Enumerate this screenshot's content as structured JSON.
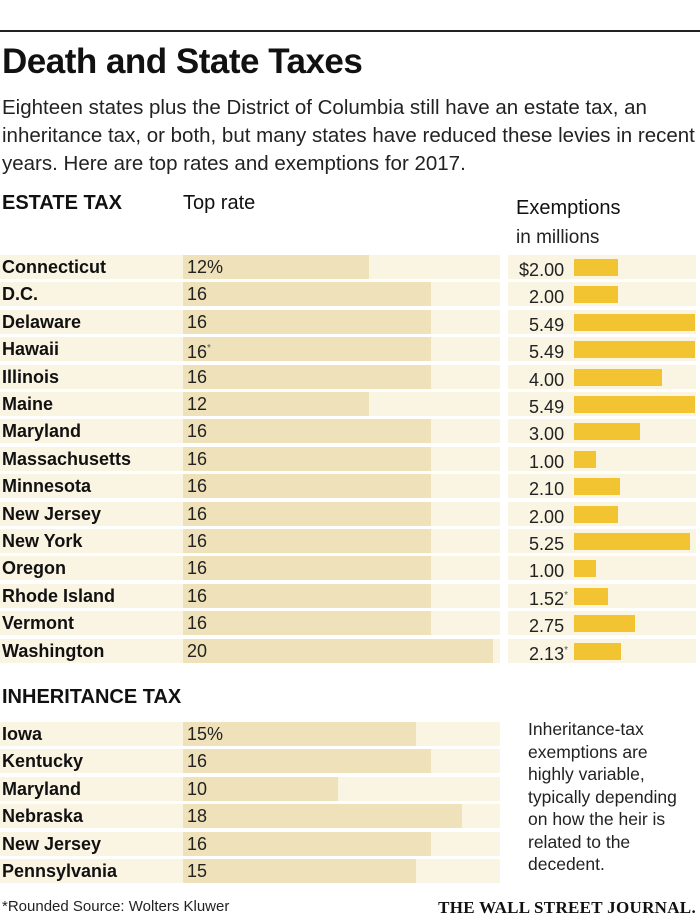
{
  "title": "Death and State Taxes",
  "subtitle": "Eighteen states plus the District of Columbia still have an estate tax, an inheritance tax, or both, but many states have reduced these levies in recent years. Here are top rates and exemptions for 2017.",
  "estate": {
    "heading": "ESTATE TAX",
    "rate_heading": "Top rate",
    "exemption_heading": "Exemptions",
    "exemption_subheading": "in millions"
  },
  "inheritance": {
    "heading": "INHERITANCE TAX",
    "exemption_note": "Inheritance-tax exemptions are highly variable, typically depending on how the heir is related to the decedent."
  },
  "footer": {
    "note": "*Rounded   Source: Wolters Kluwer",
    "brand": "THE WALL STREET JOURNAL."
  },
  "colors": {
    "row_background": "#faf4e2",
    "rate_bar": "#efe1b9",
    "exemption_bar": "#f3c431"
  },
  "chart_data": [
    {
      "type": "bar",
      "title": "ESTATE TAX",
      "xlabel": "Top rate",
      "unit": "%",
      "xlim": [
        0,
        20
      ],
      "categories": [
        "Connecticut",
        "D.C.",
        "Delaware",
        "Hawaii",
        "Illinois",
        "Maine",
        "Maryland",
        "Massachusetts",
        "Minnesota",
        "New Jersey",
        "New York",
        "Oregon",
        "Rhode Island",
        "Vermont",
        "Washington"
      ],
      "values": [
        12,
        16,
        16,
        16,
        16,
        12,
        16,
        16,
        16,
        16,
        16,
        16,
        16,
        16,
        20
      ],
      "labels": [
        "12%",
        "16",
        "16",
        "16",
        "16",
        "12",
        "16",
        "16",
        "16",
        "16",
        "16",
        "16",
        "16",
        "16",
        "20"
      ],
      "rounded": [
        false,
        false,
        false,
        true,
        false,
        false,
        false,
        false,
        false,
        false,
        false,
        false,
        false,
        false,
        false
      ]
    },
    {
      "type": "bar",
      "title": "Exemptions",
      "ylabel": "in millions",
      "unit": "$ millions",
      "xlim": [
        0,
        5.49
      ],
      "categories": [
        "Connecticut",
        "D.C.",
        "Delaware",
        "Hawaii",
        "Illinois",
        "Maine",
        "Maryland",
        "Massachusetts",
        "Minnesota",
        "New Jersey",
        "New York",
        "Oregon",
        "Rhode Island",
        "Vermont",
        "Washington"
      ],
      "values": [
        2.0,
        2.0,
        5.49,
        5.49,
        4.0,
        5.49,
        3.0,
        1.0,
        2.1,
        2.0,
        5.25,
        1.0,
        1.52,
        2.75,
        2.13
      ],
      "labels": [
        "$2.00",
        "2.00",
        "5.49",
        "5.49",
        "4.00",
        "5.49",
        "3.00",
        "1.00",
        "2.10",
        "2.00",
        "5.25",
        "1.00",
        "1.52",
        "2.75",
        "2.13"
      ],
      "rounded": [
        false,
        false,
        false,
        false,
        false,
        false,
        false,
        false,
        false,
        false,
        false,
        false,
        true,
        false,
        true
      ]
    },
    {
      "type": "bar",
      "title": "INHERITANCE TAX",
      "xlabel": "Top rate",
      "unit": "%",
      "xlim": [
        0,
        20
      ],
      "categories": [
        "Iowa",
        "Kentucky",
        "Maryland",
        "Nebraska",
        "New Jersey",
        "Pennsylvania"
      ],
      "values": [
        15,
        16,
        10,
        18,
        16,
        15
      ],
      "labels": [
        "15%",
        "16",
        "10",
        "18",
        "16",
        "15"
      ]
    }
  ]
}
